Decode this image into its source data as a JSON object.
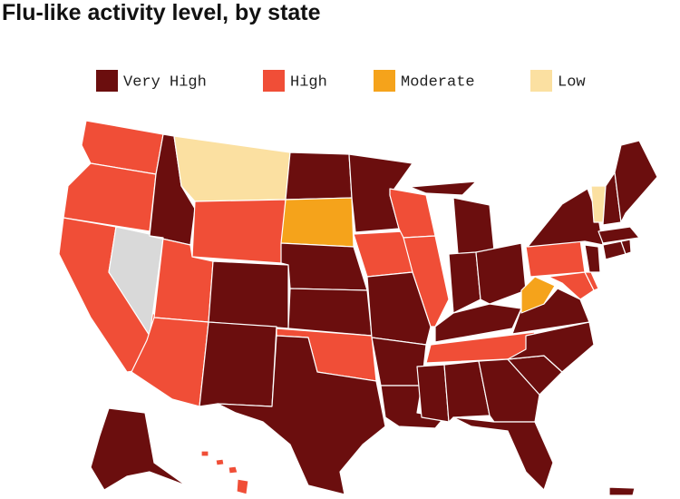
{
  "title": "Flu-like activity level, by state",
  "legend": [
    {
      "label": "Very High",
      "color": "#6b0e0e"
    },
    {
      "label": "High",
      "color": "#f04e37"
    },
    {
      "label": "Moderate",
      "color": "#f5a31b"
    },
    {
      "label": "Low",
      "color": "#fbe0a1"
    }
  ],
  "no_data_color": "#d9d9d9",
  "regions": [
    1,
    1,
    1,
    null,
    0,
    3,
    1,
    1,
    1,
    0,
    0,
    0,
    2,
    0,
    0,
    1,
    0,
    0,
    1,
    0,
    0,
    0,
    1,
    1,
    0,
    0,
    0,
    0,
    1,
    0,
    0,
    0,
    0,
    0,
    0,
    0,
    2,
    1,
    0,
    1,
    1,
    0,
    0,
    0,
    0,
    3,
    0,
    0,
    0,
    1,
    1,
    1,
    1,
    0
  ]
}
